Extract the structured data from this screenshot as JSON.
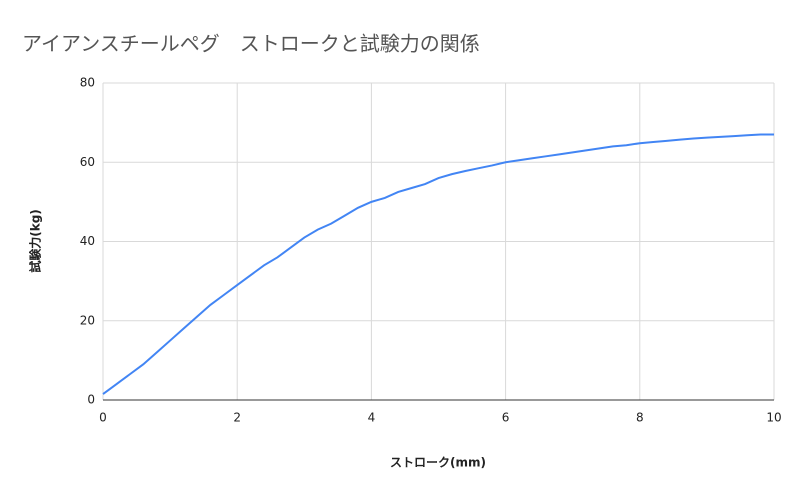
{
  "chart_data": {
    "type": "line",
    "title": "アイアンスチールペグ　ストロークと試験力の関係",
    "x_label": "ストローク(mm)",
    "y_label": "試験力(kg)",
    "x": [
      0,
      0.2,
      0.4,
      0.6,
      0.8,
      1.0,
      1.2,
      1.4,
      1.6,
      1.8,
      2.0,
      2.2,
      2.4,
      2.6,
      2.8,
      3.0,
      3.2,
      3.4,
      3.6,
      3.8,
      4.0,
      4.2,
      4.4,
      4.6,
      4.8,
      5.0,
      5.2,
      5.4,
      5.6,
      5.8,
      6.0,
      6.2,
      6.4,
      6.6,
      6.8,
      7.0,
      7.2,
      7.4,
      7.6,
      7.8,
      8.0,
      8.2,
      8.4,
      8.6,
      8.8,
      9.0,
      9.2,
      9.4,
      9.6,
      9.8,
      10.0
    ],
    "series": [
      {
        "name": "試験力(kg)",
        "color": "#4285f4",
        "values": [
          1.5,
          4,
          6.5,
          9,
          12,
          15,
          18,
          21,
          24,
          26.5,
          29,
          31.5,
          34,
          36,
          38.5,
          41,
          43,
          44.5,
          46.5,
          48.5,
          50,
          51,
          52.5,
          53.5,
          54.5,
          56,
          57,
          57.8,
          58.5,
          59.2,
          60,
          60.5,
          61,
          61.5,
          62,
          62.5,
          63,
          63.5,
          64,
          64.3,
          64.8,
          65.1,
          65.4,
          65.7,
          66,
          66.2,
          66.4,
          66.6,
          66.8,
          67,
          67
        ]
      }
    ],
    "xlim": [
      0,
      10
    ],
    "xticks": [
      0,
      2,
      4,
      6,
      8,
      10
    ],
    "ylim": [
      0,
      80
    ],
    "yticks": [
      0,
      20,
      40,
      60,
      80
    ],
    "grid": true
  }
}
